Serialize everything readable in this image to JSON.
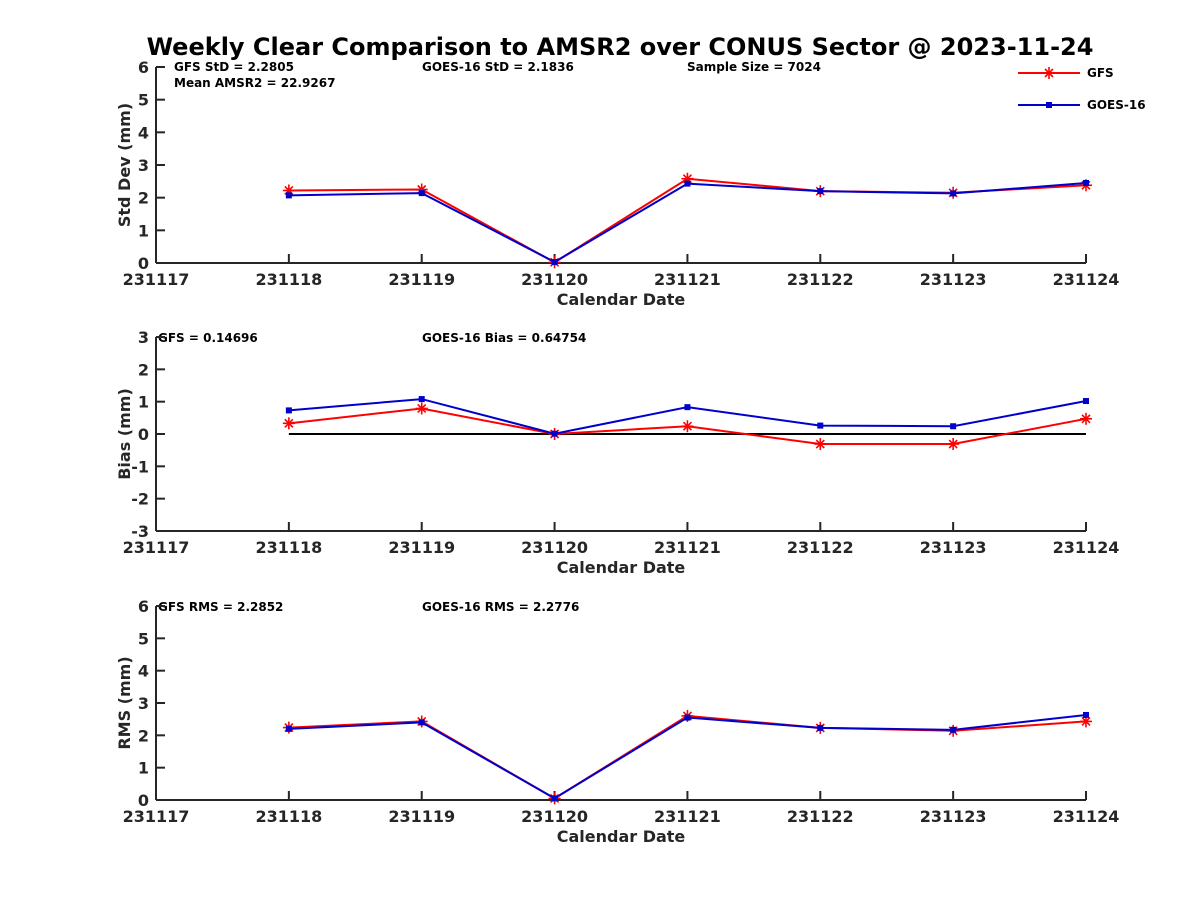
{
  "chart_data": [
    {
      "type": "line",
      "title": "Weekly Clear Comparison to AMSR2 over CONUS Sector @ 2023-11-24",
      "xlabel": "Calendar Date",
      "ylabel": "Std Dev (mm)",
      "x_ticks": [
        "231117",
        "231118",
        "231119",
        "231120",
        "231121",
        "231122",
        "231123",
        "231124"
      ],
      "y_ticks": [
        "0",
        "1",
        "2",
        "3",
        "4",
        "5",
        "6"
      ],
      "ylim": [
        0,
        6
      ],
      "x": [
        "231118",
        "231119",
        "231120",
        "231121",
        "231122",
        "231123",
        "231124"
      ],
      "series": [
        {
          "name": "GFS",
          "values": [
            2.22,
            2.25,
            0.02,
            2.58,
            2.2,
            2.15,
            2.38
          ],
          "color": "#ff0000",
          "marker": "asterisk"
        },
        {
          "name": "GOES-16",
          "values": [
            2.07,
            2.14,
            0.03,
            2.43,
            2.2,
            2.13,
            2.45
          ],
          "color": "#0000cc",
          "marker": "square"
        }
      ],
      "annotations": [
        "GFS StD = 2.2805",
        "Mean AMSR2 = 22.9267",
        "GOES-16 StD = 2.1836",
        "Sample Size = 7024"
      ],
      "legend": {
        "entries": [
          "GFS",
          "GOES-16"
        ],
        "placement": "top-right"
      },
      "grid": false
    },
    {
      "type": "line",
      "xlabel": "Calendar Date",
      "ylabel": "Bias (mm)",
      "x_ticks": [
        "231117",
        "231118",
        "231119",
        "231120",
        "231121",
        "231122",
        "231123",
        "231124"
      ],
      "y_ticks": [
        "-3",
        "-2",
        "-1",
        "0",
        "1",
        "2",
        "3"
      ],
      "ylim": [
        -3,
        3
      ],
      "x": [
        "231118",
        "231119",
        "231120",
        "231121",
        "231122",
        "231123",
        "231124"
      ],
      "series": [
        {
          "name": "GFS",
          "values": [
            0.33,
            0.79,
            0.0,
            0.24,
            -0.31,
            -0.31,
            0.47
          ],
          "color": "#ff0000",
          "marker": "asterisk"
        },
        {
          "name": "GOES-16",
          "values": [
            0.73,
            1.08,
            0.01,
            0.83,
            0.26,
            0.24,
            1.02
          ],
          "color": "#0000cc",
          "marker": "square"
        }
      ],
      "reference_line": 0,
      "annotations": [
        "GFS = 0.14696",
        "GOES-16 Bias  = 0.64754"
      ],
      "grid": false
    },
    {
      "type": "line",
      "xlabel": "Calendar Date",
      "ylabel": "RMS (mm)",
      "x_ticks": [
        "231117",
        "231118",
        "231119",
        "231120",
        "231121",
        "231122",
        "231123",
        "231124"
      ],
      "y_ticks": [
        "0",
        "1",
        "2",
        "3",
        "4",
        "5",
        "6"
      ],
      "ylim": [
        0,
        6
      ],
      "x": [
        "231118",
        "231119",
        "231120",
        "231121",
        "231122",
        "231123",
        "231124"
      ],
      "series": [
        {
          "name": "GFS",
          "values": [
            2.24,
            2.43,
            0.05,
            2.6,
            2.23,
            2.14,
            2.43
          ],
          "color": "#ff0000",
          "marker": "asterisk"
        },
        {
          "name": "GOES-16",
          "values": [
            2.2,
            2.4,
            0.05,
            2.55,
            2.23,
            2.17,
            2.63
          ],
          "color": "#0000cc",
          "marker": "square"
        }
      ],
      "annotations": [
        "GFS RMS = 2.2852",
        "GOES-16 RMS = 2.2776"
      ],
      "grid": false
    }
  ]
}
